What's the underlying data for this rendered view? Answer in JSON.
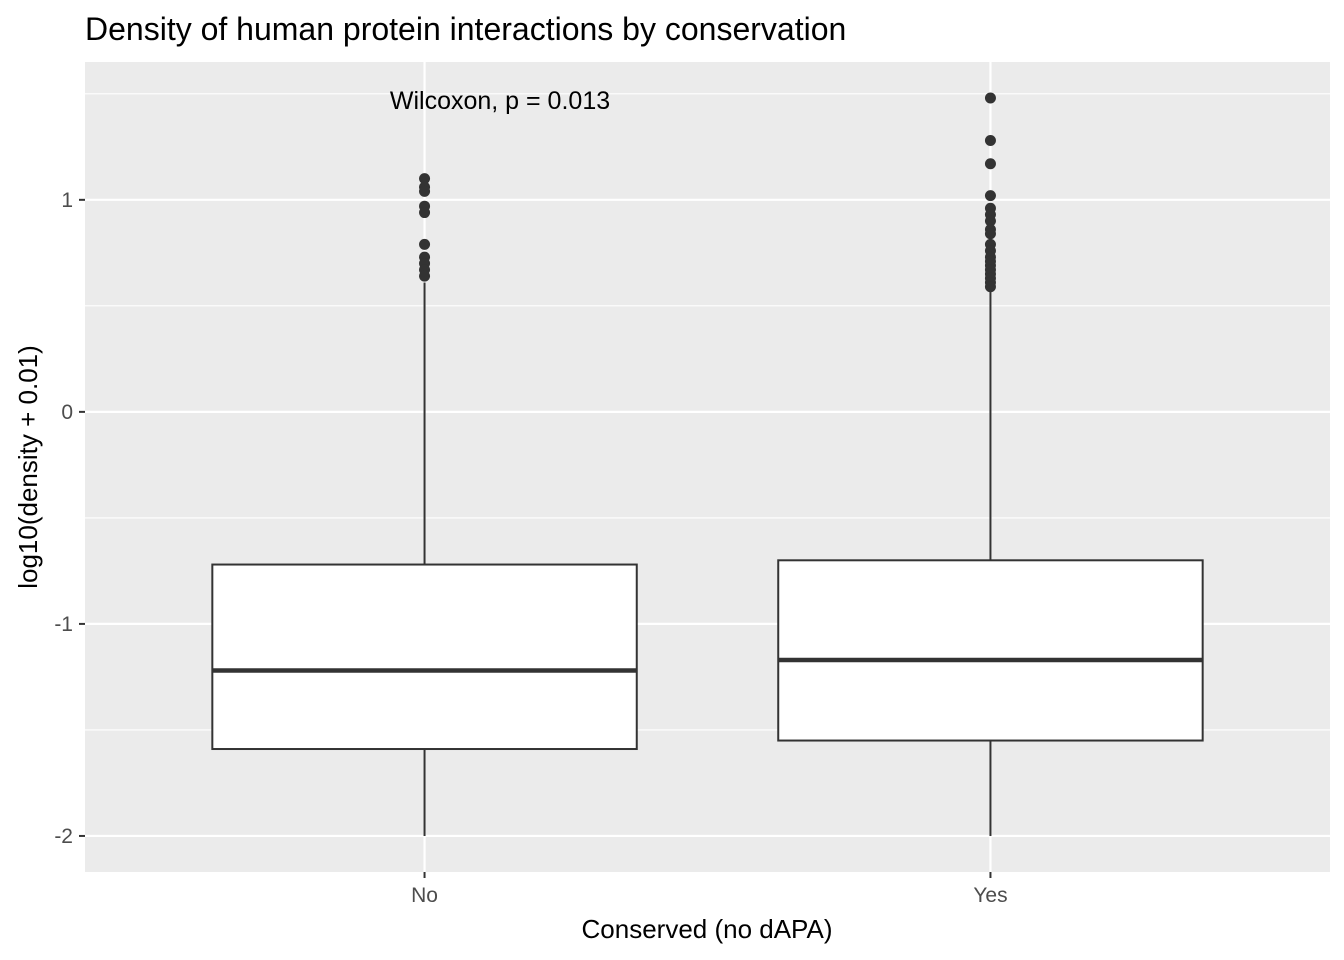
{
  "chart_data": {
    "type": "boxplot",
    "title": "Density of human protein interactions by conservation",
    "xlabel": "Conserved (no dAPA)",
    "ylabel": "log10(density + 0.01)",
    "categories": [
      "No",
      "Yes"
    ],
    "ylim": [
      -2.17,
      1.65
    ],
    "yticks": [
      -2,
      -1,
      0,
      1
    ],
    "grid": true,
    "annotation": "Wilcoxon, p = 0.013",
    "colors": {
      "panel": "#ebebeb",
      "grid": "#ffffff",
      "box_fill": "#ffffff",
      "box_line": "#333333",
      "outlier": "#333333"
    },
    "boxes": [
      {
        "category": "No",
        "lower_whisker": -2.0,
        "q1": -1.59,
        "median": -1.22,
        "q3": -0.72,
        "upper_whisker": 0.61,
        "outliers": [
          1.1,
          1.06,
          1.04,
          0.97,
          0.94,
          0.79,
          0.73,
          0.7,
          0.67,
          0.64
        ]
      },
      {
        "category": "Yes",
        "lower_whisker": -2.0,
        "q1": -1.55,
        "median": -1.17,
        "q3": -0.7,
        "upper_whisker": 0.57,
        "outliers": [
          1.48,
          1.28,
          1.17,
          1.02,
          0.96,
          0.93,
          0.9,
          0.86,
          0.84,
          0.79,
          0.76,
          0.73,
          0.71,
          0.69,
          0.67,
          0.65,
          0.63,
          0.61,
          0.59
        ]
      }
    ]
  }
}
